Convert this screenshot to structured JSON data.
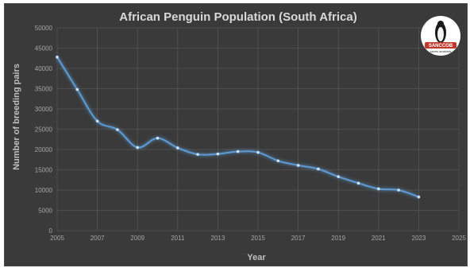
{
  "chart_data": {
    "type": "line",
    "title": "African Penguin Population (South Africa)",
    "xlabel": "Year",
    "ylabel": "Number of breeding pairs",
    "xlim": [
      2005,
      2025
    ],
    "ylim": [
      0,
      50000
    ],
    "x_ticks": [
      "2005",
      "2007",
      "2009",
      "2011",
      "2013",
      "2015",
      "2017",
      "2019",
      "2021",
      "2023",
      "2025"
    ],
    "y_ticks": [
      "0",
      "5000",
      "10000",
      "15000",
      "20000",
      "25000",
      "30000",
      "35000",
      "40000",
      "45000",
      "50000"
    ],
    "grid": true,
    "line_color": "#5b9bd5",
    "series": [
      {
        "x": [
          2005,
          2006,
          2007,
          2008,
          2009,
          2010,
          2011,
          2012,
          2013,
          2014,
          2015,
          2016,
          2017,
          2018,
          2019,
          2020,
          2021,
          2022,
          2023
        ],
        "y": [
          42800,
          34800,
          27000,
          24900,
          20500,
          22800,
          20400,
          18800,
          18900,
          19500,
          19300,
          17200,
          16100,
          15200,
          13300,
          11700,
          10300,
          10000,
          8300
        ]
      }
    ]
  },
  "logo": {
    "name": "penguin-icon",
    "text": "SANCCOB",
    "tagline": "saves seabirds"
  }
}
